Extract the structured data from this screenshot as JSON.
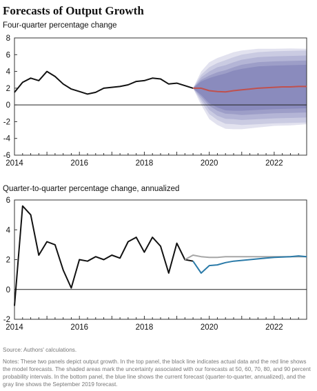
{
  "figure": {
    "title": "Forecasts of Output Growth",
    "source": "Source: Authors' calculations.",
    "notes": "Notes: These two panels depict output growth. In the top panel, the black line indicates actual data and the red line shows the model forecasts. The shaded areas mark the uncertainty associated with our forecasts at 50, 60, 70, 80, and 90 percent probability intervals. In the bottom panel, the blue line shows the current forecast (quarter-to-quarter, annualized), and the gray line shows the September 2019 forecast.",
    "colors": {
      "actual": "#111111",
      "forecast_top": "#c0504d",
      "current_forecast": "#2a7aa8",
      "sept_forecast": "#a6a6a6",
      "bands": [
        "#e2e2ef",
        "#cacbe2",
        "#b4b5d6",
        "#9d9ec8",
        "#8a8bbd"
      ]
    }
  },
  "chart_data": [
    {
      "type": "line",
      "subtitle": "Four-quarter percentage change",
      "xlabel": "",
      "ylabel": "",
      "xlim": [
        2014.0,
        2023.0
      ],
      "ylim": [
        -6,
        8
      ],
      "xticks": [
        2014,
        2016,
        2018,
        2020,
        2022
      ],
      "yticks": [
        -6,
        -4,
        -2,
        0,
        2,
        4,
        6,
        8
      ],
      "grid": false,
      "zero_line": true,
      "series": [
        {
          "name": "Actual",
          "x": [
            2014.0,
            2014.25,
            2014.5,
            2014.75,
            2015.0,
            2015.25,
            2015.5,
            2015.75,
            2016.0,
            2016.25,
            2016.5,
            2016.75,
            2017.0,
            2017.25,
            2017.5,
            2017.75,
            2018.0,
            2018.25,
            2018.5,
            2018.75,
            2019.0,
            2019.25,
            2019.5
          ],
          "y": [
            1.5,
            2.7,
            3.2,
            2.9,
            4.0,
            3.4,
            2.5,
            1.9,
            1.6,
            1.3,
            1.5,
            2.0,
            2.1,
            2.2,
            2.4,
            2.8,
            2.9,
            3.2,
            3.1,
            2.5,
            2.6,
            2.3,
            2.0
          ]
        },
        {
          "name": "Forecast",
          "x": [
            2019.5,
            2019.75,
            2020.0,
            2020.25,
            2020.5,
            2020.75,
            2021.0,
            2021.25,
            2021.5,
            2021.75,
            2022.0,
            2022.25,
            2022.5,
            2022.75,
            2023.0
          ],
          "y": [
            2.0,
            2.0,
            1.7,
            1.6,
            1.55,
            1.7,
            1.8,
            1.9,
            2.0,
            2.05,
            2.1,
            2.15,
            2.15,
            2.2,
            2.2
          ]
        }
      ],
      "bands": {
        "levels": [
          "50%",
          "60%",
          "70%",
          "80%",
          "90%"
        ],
        "x": [
          2019.5,
          2019.75,
          2020.0,
          2020.25,
          2020.5,
          2020.75,
          2021.0,
          2021.5,
          2022.0,
          2022.5,
          2023.0
        ],
        "half_width": {
          "50%": [
            0,
            0.8,
            1.5,
            1.9,
            2.2,
            2.4,
            2.5,
            2.6,
            2.6,
            2.6,
            2.6
          ],
          "60%": [
            0,
            1.0,
            1.8,
            2.3,
            2.6,
            2.8,
            3.0,
            3.1,
            3.1,
            3.1,
            3.1
          ],
          "70%": [
            0,
            1.3,
            2.3,
            2.9,
            3.2,
            3.4,
            3.6,
            3.7,
            3.7,
            3.7,
            3.7
          ],
          "80%": [
            0,
            1.6,
            2.8,
            3.4,
            3.8,
            4.0,
            4.2,
            4.3,
            4.3,
            4.3,
            4.3
          ],
          "90%": [
            0,
            2.0,
            3.4,
            4.0,
            4.4,
            4.6,
            4.7,
            4.7,
            4.6,
            4.6,
            4.5
          ]
        }
      }
    },
    {
      "type": "line",
      "subtitle": "Quarter-to-quarter percentage change, annualized",
      "xlabel": "",
      "ylabel": "",
      "xlim": [
        2014.0,
        2023.0
      ],
      "ylim": [
        -2,
        6
      ],
      "xticks": [
        2014,
        2016,
        2018,
        2020,
        2022
      ],
      "yticks": [
        -2,
        0,
        2,
        4,
        6
      ],
      "grid": false,
      "zero_line": true,
      "series": [
        {
          "name": "Actual",
          "x": [
            2014.0,
            2014.25,
            2014.5,
            2014.75,
            2015.0,
            2015.25,
            2015.5,
            2015.75,
            2016.0,
            2016.25,
            2016.5,
            2016.75,
            2017.0,
            2017.25,
            2017.5,
            2017.75,
            2018.0,
            2018.25,
            2018.5,
            2018.75,
            2019.0,
            2019.25,
            2019.5
          ],
          "y": [
            -1.1,
            5.6,
            5.0,
            2.3,
            3.2,
            3.0,
            1.3,
            0.1,
            2.0,
            1.9,
            2.2,
            2.0,
            2.3,
            2.1,
            3.2,
            3.5,
            2.5,
            3.5,
            2.9,
            1.1,
            3.1,
            2.0,
            1.9
          ]
        },
        {
          "name": "September 2019 forecast",
          "x": [
            2019.25,
            2019.5,
            2019.75,
            2020.0,
            2020.25,
            2020.5,
            2020.75,
            2021.0,
            2021.5,
            2022.0,
            2022.5,
            2023.0
          ],
          "y": [
            2.0,
            2.3,
            2.2,
            2.15,
            2.15,
            2.2,
            2.2,
            2.2,
            2.2,
            2.2,
            2.2,
            2.2
          ]
        },
        {
          "name": "Current forecast",
          "x": [
            2019.5,
            2019.75,
            2020.0,
            2020.25,
            2020.5,
            2020.75,
            2021.0,
            2021.25,
            2021.5,
            2021.75,
            2022.0,
            2022.5,
            2022.75,
            2023.0
          ],
          "y": [
            1.9,
            1.1,
            1.6,
            1.65,
            1.8,
            1.9,
            1.95,
            2.0,
            2.05,
            2.1,
            2.15,
            2.2,
            2.25,
            2.2
          ]
        }
      ]
    }
  ]
}
